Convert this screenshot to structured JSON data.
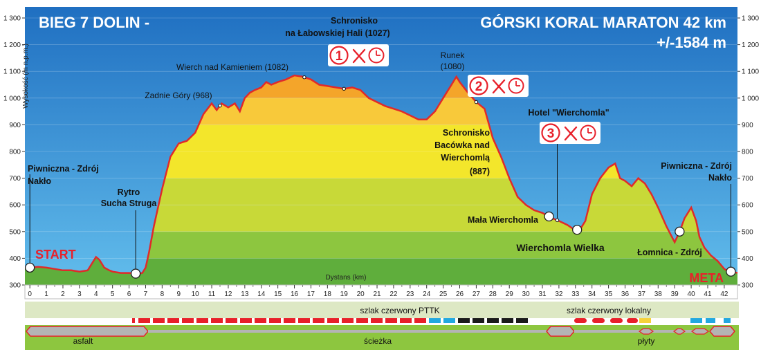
{
  "chart_data": {
    "type": "area",
    "title_left": "BIEG 7 DOLIN -",
    "title_right": "GÓRSKI KORAL MARATON 42 km",
    "subtitle_right": "+/-1584 m",
    "ylabel": "Wysokość (m n.p.m.)",
    "xlabel": "Dystans (km)",
    "ylim": [
      300,
      1300
    ],
    "xlim": [
      -0.3,
      42.8
    ],
    "yticks": [
      "300",
      "400",
      "500",
      "600",
      "700",
      "800",
      "900",
      "1 000",
      "1 100",
      "1 200",
      "1 300"
    ],
    "xticks": [
      "0",
      "1",
      "2",
      "3",
      "4",
      "5",
      "6",
      "7",
      "8",
      "9",
      "10",
      "11",
      "12",
      "13",
      "14",
      "15",
      "16",
      "17",
      "18",
      "19",
      "20",
      "21",
      "22",
      "23",
      "24",
      "25",
      "26",
      "27",
      "28",
      "29",
      "30",
      "31",
      "32",
      "33",
      "34",
      "35",
      "36",
      "37",
      "38",
      "39",
      "40",
      "41",
      "42"
    ],
    "series": [
      {
        "x": [
          -0.3,
          0,
          0.5,
          1,
          1.5,
          2,
          2.5,
          3,
          3.5,
          3.8,
          4,
          4.2,
          4.5,
          4.8,
          5,
          5.5,
          6,
          6.5,
          6.8,
          7,
          7.2,
          7.5,
          8,
          8.5,
          9,
          9.5,
          10,
          10.5,
          11,
          11.3,
          11.6,
          12,
          12.4,
          12.7,
          13,
          13.3,
          13.6,
          14,
          14.3,
          14.6,
          15,
          15.5,
          16,
          16.5,
          17,
          17.5,
          18,
          18.5,
          19,
          19.5,
          20,
          20.5,
          21,
          21.5,
          22,
          22.5,
          23,
          23.5,
          24,
          24.5,
          25,
          25.5,
          25.8,
          26,
          26.5,
          27,
          27.5,
          28,
          28.5,
          29,
          29.5,
          30,
          30.5,
          31,
          31.3,
          31.6,
          32,
          32.5,
          33,
          33.3,
          33.6,
          34,
          34.5,
          35,
          35.4,
          35.7,
          36,
          36.4,
          36.8,
          37.2,
          37.6,
          38,
          38.5,
          39,
          39.3,
          39.6,
          40,
          40.3,
          40.5,
          40.8,
          41.2,
          41.6,
          42,
          42.3,
          42.5,
          42.8
        ],
        "y": [
          365,
          365,
          368,
          365,
          360,
          355,
          355,
          350,
          355,
          385,
          405,
          395,
          365,
          355,
          350,
          345,
          345,
          342,
          345,
          365,
          420,
          520,
          660,
          780,
          830,
          840,
          870,
          940,
          980,
          955,
          980,
          965,
          980,
          950,
          1000,
          1020,
          1030,
          1040,
          1060,
          1050,
          1060,
          1070,
          1085,
          1080,
          1070,
          1050,
          1045,
          1040,
          1035,
          1040,
          1030,
          1000,
          985,
          970,
          960,
          950,
          935,
          920,
          920,
          950,
          1000,
          1050,
          1080,
          1060,
          1020,
          985,
          960,
          850,
          780,
          700,
          630,
          600,
          580,
          570,
          560,
          550,
          540,
          525,
          505,
          510,
          540,
          640,
          700,
          740,
          755,
          700,
          690,
          670,
          700,
          680,
          640,
          590,
          520,
          460,
          500,
          550,
          590,
          540,
          480,
          440,
          410,
          390,
          360,
          350,
          350,
          345
        ]
      }
    ],
    "labels": {
      "start": "START",
      "meta": "META",
      "piwniczna_l1": "Piwniczna - Zdrój",
      "piwniczna_l2": "Nakło",
      "rytro_l1": "Rytro",
      "rytro_l2": "Sucha Struga",
      "zadnie": "Zadnie Góry (968)",
      "wierch": "Wierch nad Kamieniem (1082)",
      "schr1_l1": "Schronisko",
      "schr1_l2": "na Łabowskiej  Hali  (1027)",
      "runek_l1": "Runek",
      "runek_l2": "(1080)",
      "bac_l1": "Schronisko",
      "bac_l2": "Bacówka nad",
      "bac_l3": "Wierchomlą",
      "bac_l4": "(887)",
      "hotel": "Hotel  \"Wierchomla\"",
      "mala": "Mała Wierchomla",
      "wielka": "Wierchomla Wielka",
      "lomnica": "Łomnica - Zdrój",
      "piwniczna_r1": "Piwniczna - Zdrój",
      "piwniczna_r2": "Nakło"
    },
    "stations": [
      "1",
      "2",
      "3"
    ],
    "trail": {
      "pttk": "szlak czerwony PTTK",
      "local": "szlak czerwony lokalny"
    },
    "surface": {
      "asfalt": "asfalt",
      "sciezka": "ścieżka",
      "plyty": "płyty"
    },
    "colors": {
      "sky_top": "#1f6fc1",
      "sky_bottom": "#5db7ea",
      "profile_line": "#e02a2a",
      "band_green_dark": "#5fae3c",
      "band_green": "#8dc63f",
      "band_yellow_green": "#c8d938",
      "band_yellow": "#f3e62b",
      "band_orange_light": "#f8c93a",
      "band_orange": "#f4a52a",
      "red": "#e8202a",
      "cyan": "#22a8e0",
      "black": "#1a1a1a",
      "yellow": "#f6d23a"
    },
    "grid": true,
    "legend": "none"
  }
}
